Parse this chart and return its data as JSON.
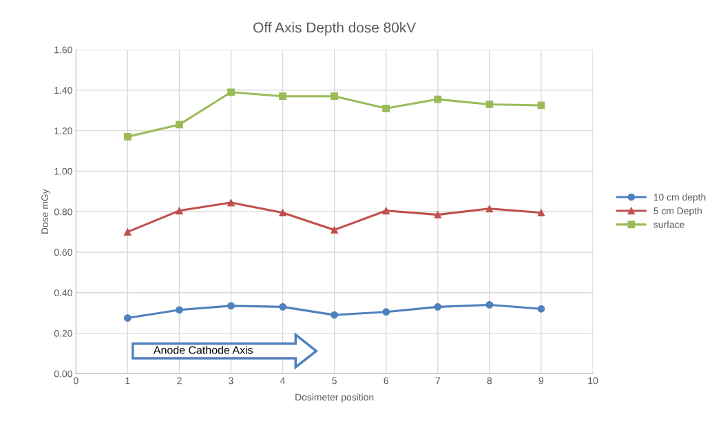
{
  "chart_data": {
    "type": "line",
    "title": "Off Axis Depth dose 80kV",
    "xlabel": "Dosimeter position",
    "ylabel": "Dose mGy",
    "x": [
      1,
      2,
      3,
      4,
      5,
      6,
      7,
      8,
      9
    ],
    "series": [
      {
        "name": "10 cm depth",
        "color": "#4f81bd",
        "marker": "circle",
        "values": [
          0.275,
          0.315,
          0.335,
          0.33,
          0.29,
          0.305,
          0.33,
          0.34,
          0.32
        ]
      },
      {
        "name": "5 cm Depth",
        "color": "#c0504d",
        "marker": "triangle",
        "values": [
          0.7,
          0.805,
          0.845,
          0.795,
          0.71,
          0.805,
          0.785,
          0.815,
          0.795
        ]
      },
      {
        "name": "surface",
        "color": "#9bbb59",
        "marker": "square",
        "values": [
          1.17,
          1.23,
          1.39,
          1.37,
          1.37,
          1.31,
          1.355,
          1.33,
          1.325
        ]
      }
    ],
    "xlim": [
      0,
      10
    ],
    "xticks": [
      0,
      1,
      2,
      3,
      4,
      5,
      6,
      7,
      8,
      9,
      10
    ],
    "ylim": [
      0,
      1.6
    ],
    "yticks": [
      {
        "value": 0,
        "label": "0.00"
      },
      {
        "value": 0.2,
        "label": "0.20"
      },
      {
        "value": 0.4,
        "label": "0.40"
      },
      {
        "value": 0.6,
        "label": "0.60"
      },
      {
        "value": 0.8,
        "label": "0.80"
      },
      {
        "value": 1.0,
        "label": "1.00"
      },
      {
        "value": 1.2,
        "label": "1.20"
      },
      {
        "value": 1.4,
        "label": "1.40"
      },
      {
        "value": 1.6,
        "label": "1.60"
      }
    ],
    "grid": true,
    "legend": "right",
    "line_style": "solid",
    "annotations": [
      "Anode Cathode Axis"
    ]
  }
}
